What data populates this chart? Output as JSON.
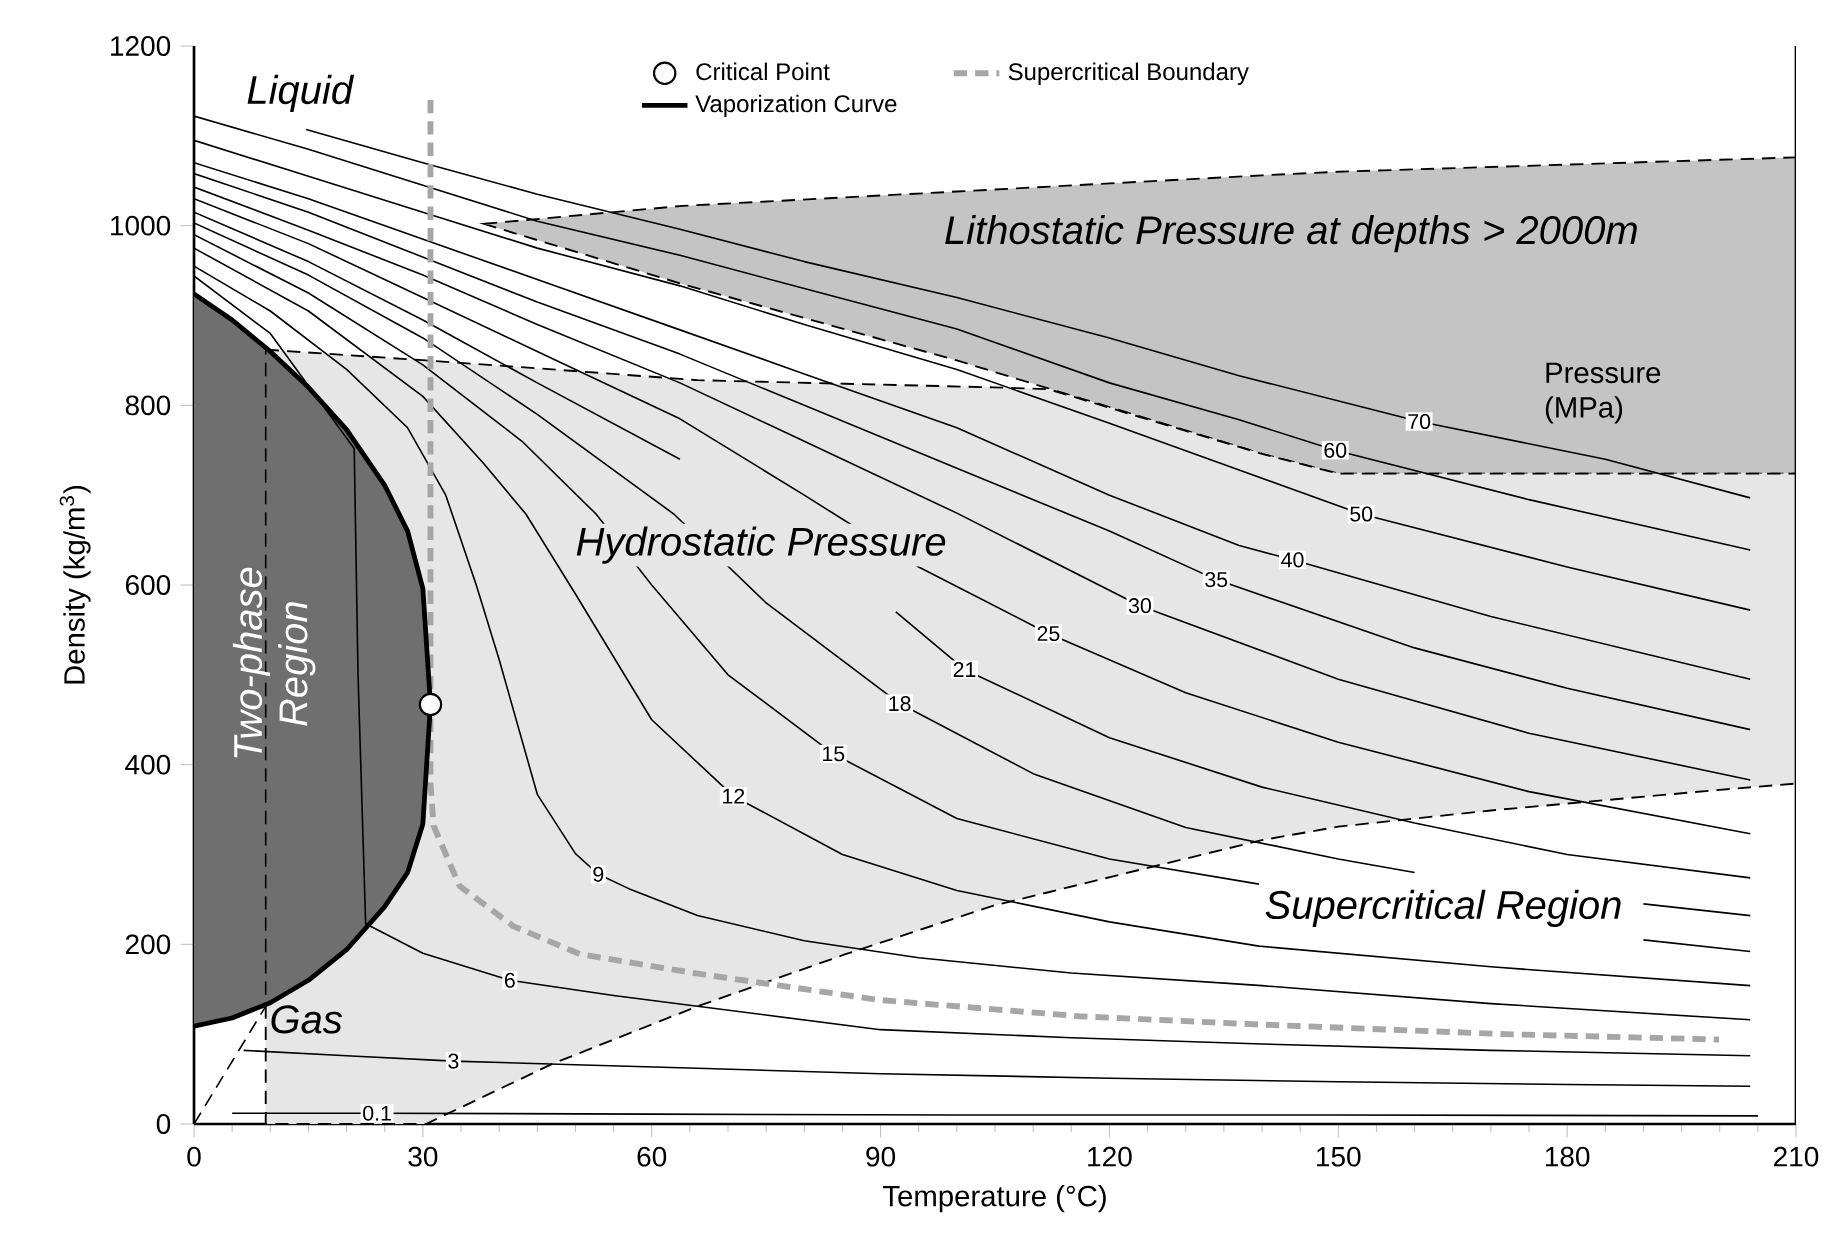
{
  "chart_data": {
    "type": "line",
    "xlabel": "Temperature (°C)",
    "ylabel": "Density (kg/m$^{3}$)",
    "xlim": [
      0,
      210
    ],
    "xticks": [
      0,
      30,
      60,
      90,
      120,
      150,
      180,
      210
    ],
    "ylim": [
      0,
      1200
    ],
    "yticks": [
      0,
      200,
      400,
      600,
      800,
      1000,
      1200
    ],
    "legend": "top",
    "series": [
      {
        "type": "area",
        "color": "#c4c4c4",
        "line_style": "dashed",
        "x": [
          38,
          64,
          100,
          140,
          150,
          210
        ],
        "values": [
          null,
          null,
          null,
          null,
          null,
          null
        ],
        "upper": [
          1002,
          1022,
          1038,
          1056,
          1060,
          1076
        ],
        "lower": [
          1002,
          935,
          850,
          746,
          724,
          724
        ]
      },
      {
        "type": "area",
        "color": "#e6e6e6",
        "line_style": "dashed",
        "x": [
          9.4,
          30.4,
          47,
          66,
          85.4,
          104.8,
          112,
          124,
          140,
          150,
          170,
          200,
          210
        ],
        "values": [
          null,
          null,
          null,
          null,
          null,
          null,
          null,
          null,
          null,
          null,
          null,
          null,
          null
        ],
        "upper": [
          862,
          850,
          840,
          828,
          824,
          820,
          818,
          787,
          746,
          724,
          724,
          724,
          724
        ],
        "lower": [
          0,
          0,
          67,
          131,
          189,
          243,
          258,
          283,
          316,
          331,
          349,
          372,
          379
        ]
      },
      {
        "type": "area",
        "color": "#6f6f6f",
        "x": [
          0,
          5,
          10,
          15,
          20,
          25,
          28,
          30,
          31
        ],
        "values": [
          null,
          null,
          null,
          null,
          null,
          null,
          null,
          null,
          null
        ],
        "upper": [
          924,
          895,
          860,
          820,
          773,
          711,
          660,
          596,
          467
        ],
        "lower": [
          109,
          118,
          135,
          160,
          194,
          242,
          280,
          334,
          467
        ]
      },
      {
        "color": "#000000",
        "line_style": "dashed",
        "x": [
          0,
          9.4,
          9.4
        ],
        "values": [
          0,
          131,
          862
        ]
      },
      {
        "name": "0.1",
        "color": "#000000",
        "x": [
          5,
          24,
          60,
          100,
          150,
          205
        ],
        "values": [
          12,
          12,
          11,
          10,
          10,
          9
        ]
      },
      {
        "name": "3",
        "color": "#000000",
        "x": [
          6.5,
          20,
          34,
          50,
          66,
          90,
          120,
          150,
          180,
          204
        ],
        "values": [
          82,
          76,
          70,
          66,
          62,
          56,
          51,
          47,
          44,
          42
        ]
      },
      {
        "name": "6",
        "color": "#000000",
        "x": [
          0,
          10,
          21,
          21.5,
          22.5,
          30,
          41.4,
          55,
          66,
          90,
          115,
          140,
          170,
          204
        ],
        "values": [
          944,
          880,
          752,
          500,
          223,
          190,
          160,
          143,
          131,
          105,
          96,
          89,
          82,
          76
        ]
      },
      {
        "name": "9",
        "color": "#000000",
        "x": [
          0,
          10,
          20,
          28,
          33,
          37,
          40,
          45,
          50,
          53,
          57,
          66,
          80,
          95,
          115,
          140,
          170,
          204
        ],
        "values": [
          955,
          905,
          840,
          775,
          700,
          600,
          517,
          367,
          301,
          278,
          262,
          232,
          204,
          185,
          168,
          154,
          134,
          116
        ]
      },
      {
        "name": "12",
        "color": "#000000",
        "x": [
          0,
          15,
          30,
          38,
          43.5,
          50,
          60,
          70.7,
          85,
          100,
          120,
          139.6,
          170,
          204
        ],
        "values": [
          975,
          905,
          810,
          735,
          679,
          590,
          450,
          365,
          300,
          260,
          225,
          198,
          175,
          154
        ]
      },
      {
        "name": "15",
        "color": "#000000",
        "x": [
          0,
          15,
          30,
          43,
          52.7,
          60,
          70,
          83.8,
          100,
          120,
          139.6,
          170,
          190,
          204
        ],
        "values": [
          990,
          925,
          845,
          760,
          679,
          600,
          500,
          412,
          340,
          295,
          267,
          null,
          205,
          192
        ]
      },
      {
        "name": "18",
        "color": "#000000",
        "x": [
          0,
          15,
          30,
          45,
          62.9,
          75,
          92.5,
          110,
          130,
          150,
          160,
          175,
          190,
          204
        ],
        "values": [
          1003,
          945,
          875,
          790,
          679,
          580,
          468,
          390,
          330,
          295,
          280,
          null,
          245,
          232
        ]
      },
      {
        "name": "21",
        "color": "#000000",
        "x": [
          0,
          15,
          30,
          45,
          63.7,
          80,
          92,
          101,
          120,
          140,
          160,
          180,
          204
        ],
        "values": [
          1015,
          960,
          895,
          825,
          740,
          null,
          570,
          506,
          430,
          375,
          335,
          300,
          274
        ]
      },
      {
        "name": "25",
        "color": "#000000",
        "x": [
          0,
          15,
          30,
          45,
          63.7,
          80,
          95,
          112,
          130,
          150,
          175,
          204
        ],
        "values": [
          1030,
          980,
          920,
          860,
          785,
          700,
          620,
          546,
          480,
          425,
          370,
          323
        ]
      },
      {
        "name": "30",
        "color": "#000000",
        "x": [
          0,
          15,
          30,
          45,
          63.7,
          80,
          100,
          124,
          150,
          175,
          204
        ],
        "values": [
          1043,
          995,
          945,
          890,
          825,
          760,
          680,
          577,
          495,
          435,
          383
        ]
      },
      {
        "name": "35",
        "color": "#000000",
        "x": [
          0,
          15,
          30,
          45,
          63.7,
          80,
          100,
          120,
          134,
          160,
          180,
          204
        ],
        "values": [
          1058,
          1015,
          965,
          915,
          857,
          800,
          730,
          660,
          606,
          530,
          485,
          439
        ]
      },
      {
        "name": "40",
        "color": "#000000",
        "x": [
          0,
          15,
          30,
          45,
          63.7,
          80,
          100,
          120,
          137,
          144,
          170,
          204
        ],
        "values": [
          1070,
          1030,
          985,
          940,
          884,
          835,
          775,
          700,
          644,
          628,
          565,
          495
        ]
      },
      {
        "name": "50",
        "color": "#000000",
        "x": [
          0,
          15,
          30,
          45,
          63.7,
          80,
          100,
          120,
          137,
          153,
          180,
          204
        ],
        "values": [
          1095,
          1055,
          1015,
          975,
          933,
          890,
          840,
          780,
          728,
          679,
          620,
          572
        ]
      },
      {
        "name": "60",
        "color": "#000000",
        "x": [
          0,
          15,
          30,
          45,
          63.7,
          80,
          100,
          120,
          137,
          149.6,
          175,
          204
        ],
        "values": [
          1122,
          1085,
          1045,
          1005,
          967,
          930,
          885,
          825,
          784,
          750,
          695,
          639
        ]
      },
      {
        "name": "70",
        "color": "#000000",
        "x": [
          14.7,
          30,
          45,
          63.7,
          80,
          100,
          120,
          137,
          160.6,
          185,
          204
        ],
        "values": [
          1107,
          1070,
          1035,
          996,
          960,
          920,
          875,
          833,
          782,
          740,
          697
        ]
      },
      {
        "name": "Critical Point",
        "type": "scatter",
        "marker": "circle",
        "color": "#ffffff",
        "x": [
          31
        ],
        "values": [
          467
        ]
      },
      {
        "name": "Supercritical Boundary",
        "color": "#a6a6a6",
        "line_style": "dashed",
        "x": [
          31,
          31,
          31.4,
          34.8,
          41.9,
          50.6,
          66.3,
          89.9,
          116,
          138.9,
          171.9,
          199.9
        ],
        "values": [
          1140,
          380,
          332,
          265,
          220,
          189,
          167,
          138,
          120,
          111,
          100,
          94
        ]
      },
      {
        "name": "Vaporization Curve",
        "color": "#000000",
        "x": [
          0,
          5,
          10,
          15,
          20,
          25,
          28,
          30,
          31,
          30,
          28,
          25,
          20,
          15,
          10,
          5,
          0
        ],
        "values": [
          924,
          895,
          860,
          820,
          773,
          711,
          660,
          596,
          467,
          334,
          280,
          242,
          194,
          160,
          135,
          118,
          109
        ]
      }
    ],
    "annotations": [
      "Liquid",
      "Gas",
      "Two-phase Region",
      "Hydrostatic Pressure",
      "Lithostatic Pressure at depths > 2000m",
      "Supercritical Region",
      "Pressure (MPa)"
    ]
  }
}
